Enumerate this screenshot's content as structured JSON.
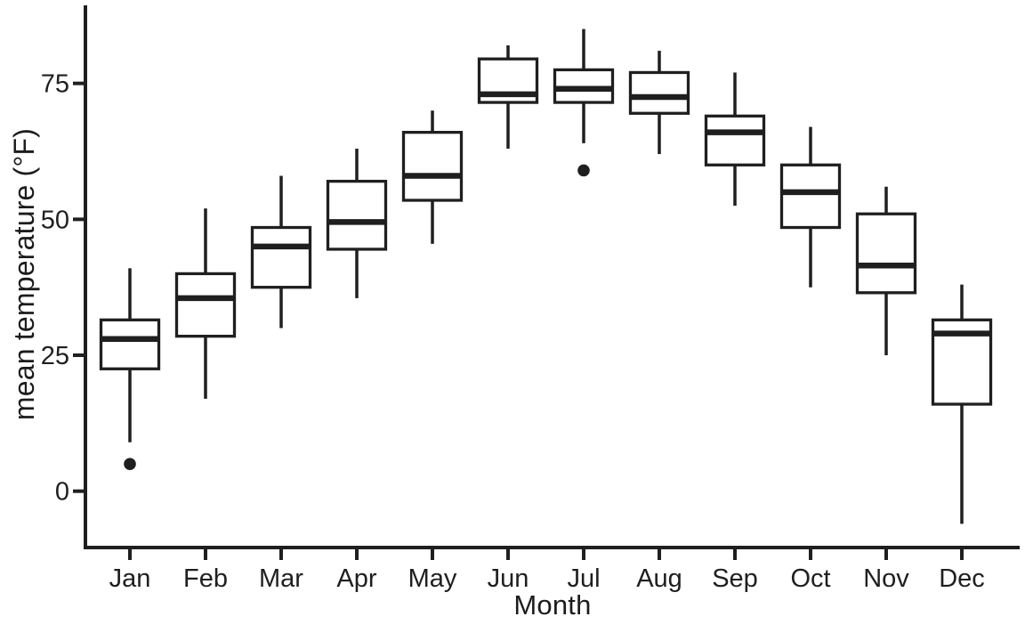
{
  "colors": {
    "stroke": "#1f1f1f",
    "background": "#ffffff"
  },
  "chart_data": {
    "type": "boxplot",
    "title": "",
    "xlabel": "Month",
    "ylabel": "mean temperature (°F)",
    "legend": "none",
    "grid": "off",
    "categories": [
      "Jan",
      "Feb",
      "Mar",
      "Apr",
      "May",
      "Jun",
      "Jul",
      "Aug",
      "Sep",
      "Oct",
      "Nov",
      "Dec"
    ],
    "y_ticks": [
      0,
      25,
      50,
      75
    ],
    "ylim": [
      -10,
      89
    ],
    "series": [
      {
        "month": "Jan",
        "whisker_low": 9,
        "q1": 22.5,
        "median": 28,
        "q3": 31.5,
        "whisker_high": 41,
        "outliers": [
          5
        ]
      },
      {
        "month": "Feb",
        "whisker_low": 17,
        "q1": 28.5,
        "median": 35.5,
        "q3": 40,
        "whisker_high": 52,
        "outliers": []
      },
      {
        "month": "Mar",
        "whisker_low": 30,
        "q1": 37.5,
        "median": 45,
        "q3": 48.5,
        "whisker_high": 58,
        "outliers": []
      },
      {
        "month": "Apr",
        "whisker_low": 35.5,
        "q1": 44.5,
        "median": 49.5,
        "q3": 57,
        "whisker_high": 63,
        "outliers": []
      },
      {
        "month": "May",
        "whisker_low": 45.5,
        "q1": 53.5,
        "median": 58,
        "q3": 66,
        "whisker_high": 70,
        "outliers": []
      },
      {
        "month": "Jun",
        "whisker_low": 63,
        "q1": 71.5,
        "median": 73,
        "q3": 79.5,
        "whisker_high": 82,
        "outliers": []
      },
      {
        "month": "Jul",
        "whisker_low": 64,
        "q1": 71.5,
        "median": 74,
        "q3": 77.5,
        "whisker_high": 85,
        "outliers": [
          59
        ]
      },
      {
        "month": "Aug",
        "whisker_low": 62,
        "q1": 69.5,
        "median": 72.5,
        "q3": 77,
        "whisker_high": 81,
        "outliers": []
      },
      {
        "month": "Sep",
        "whisker_low": 52.5,
        "q1": 60,
        "median": 66,
        "q3": 69,
        "whisker_high": 77,
        "outliers": []
      },
      {
        "month": "Oct",
        "whisker_low": 37.5,
        "q1": 48.5,
        "median": 55,
        "q3": 60,
        "whisker_high": 67,
        "outliers": []
      },
      {
        "month": "Nov",
        "whisker_low": 25,
        "q1": 36.5,
        "median": 41.5,
        "q3": 51,
        "whisker_high": 56,
        "outliers": []
      },
      {
        "month": "Dec",
        "whisker_low": -6,
        "q1": 16,
        "median": 29,
        "q3": 31.5,
        "whisker_high": 38,
        "outliers": []
      }
    ]
  }
}
